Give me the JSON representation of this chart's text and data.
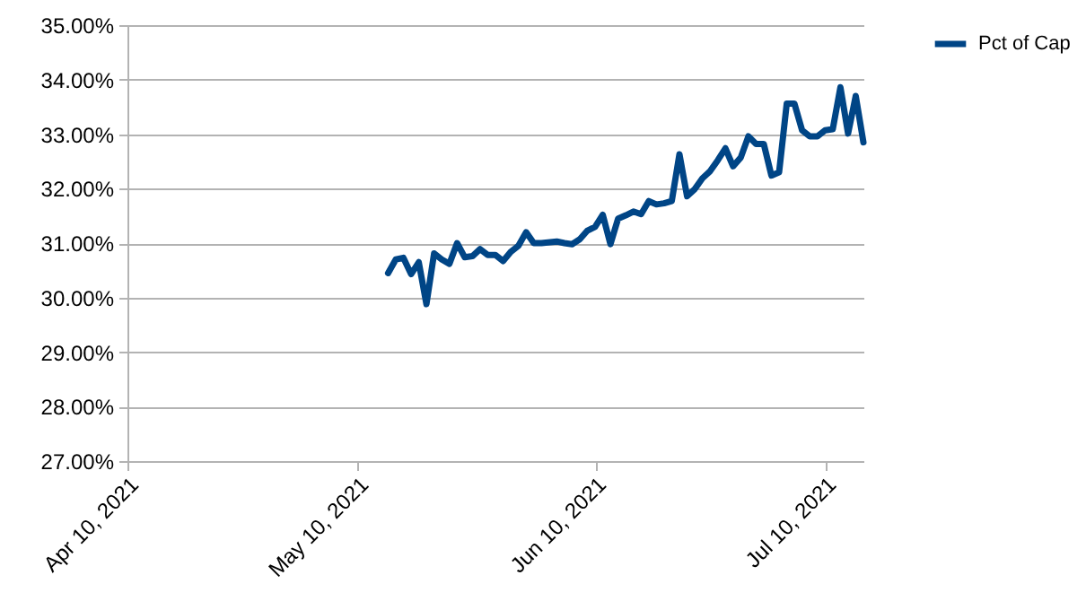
{
  "chart_data": {
    "type": "line",
    "x": [
      "2021-05-14",
      "2021-05-15",
      "2021-05-16",
      "2021-05-17",
      "2021-05-18",
      "2021-05-19",
      "2021-05-20",
      "2021-05-21",
      "2021-05-22",
      "2021-05-23",
      "2021-05-24",
      "2021-05-25",
      "2021-05-26",
      "2021-05-27",
      "2021-05-28",
      "2021-05-29",
      "2021-05-30",
      "2021-05-31",
      "2021-06-01",
      "2021-06-02",
      "2021-06-03",
      "2021-06-05",
      "2021-06-06",
      "2021-06-07",
      "2021-06-08",
      "2021-06-09",
      "2021-06-10",
      "2021-06-11",
      "2021-06-12",
      "2021-06-13",
      "2021-06-14",
      "2021-06-15",
      "2021-06-16",
      "2021-06-17",
      "2021-06-18",
      "2021-06-19",
      "2021-06-20",
      "2021-06-21",
      "2021-06-22",
      "2021-06-23",
      "2021-06-24",
      "2021-06-25",
      "2021-06-26",
      "2021-06-27",
      "2021-06-28",
      "2021-06-29",
      "2021-06-30",
      "2021-07-01",
      "2021-07-02",
      "2021-07-03",
      "2021-07-04",
      "2021-07-05",
      "2021-07-06",
      "2021-07-07",
      "2021-07-08",
      "2021-07-09",
      "2021-07-10",
      "2021-07-11",
      "2021-07-12",
      "2021-07-13",
      "2021-07-14",
      "2021-07-15"
    ],
    "series": [
      {
        "name": "Pct of Cap",
        "color": "#004586",
        "values": [
          30.45,
          30.7,
          30.73,
          30.43,
          30.65,
          29.88,
          30.81,
          30.7,
          30.62,
          31.0,
          30.74,
          30.76,
          30.89,
          30.78,
          30.78,
          30.67,
          30.84,
          30.95,
          31.2,
          31.0,
          31.0,
          31.03,
          31.0,
          30.98,
          31.07,
          31.23,
          31.3,
          31.52,
          30.98,
          31.45,
          31.51,
          31.58,
          31.53,
          31.77,
          31.71,
          31.73,
          31.77,
          32.63,
          31.86,
          31.99,
          32.19,
          32.32,
          32.52,
          32.74,
          32.41,
          32.57,
          32.96,
          32.82,
          32.82,
          32.24,
          32.3,
          33.56,
          33.56,
          33.07,
          32.96,
          32.96,
          33.07,
          33.09,
          33.86,
          33.01,
          33.7,
          32.85
        ]
      }
    ],
    "xlim": [
      "2021-04-10",
      "2021-07-15"
    ],
    "xticks": [
      {
        "value": "2021-04-10",
        "label": "Apr 10, 2021"
      },
      {
        "value": "2021-05-10",
        "label": "May 10, 2021"
      },
      {
        "value": "2021-06-10",
        "label": "Jun 10, 2021"
      },
      {
        "value": "2021-07-10",
        "label": "Jul 10, 2021"
      }
    ],
    "ylim": [
      27,
      35
    ],
    "yticks": [
      {
        "value": 27,
        "label": "27.00%"
      },
      {
        "value": 28,
        "label": "28.00%"
      },
      {
        "value": 29,
        "label": "29.00%"
      },
      {
        "value": 30,
        "label": "30.00%"
      },
      {
        "value": 31,
        "label": "31.00%"
      },
      {
        "value": 32,
        "label": "32.00%"
      },
      {
        "value": 33,
        "label": "33.00%"
      },
      {
        "value": 34,
        "label": "34.00%"
      },
      {
        "value": 35,
        "label": "35.00%"
      }
    ],
    "grid": "y",
    "legend": "right",
    "marker": "none",
    "line_style": "solid"
  }
}
